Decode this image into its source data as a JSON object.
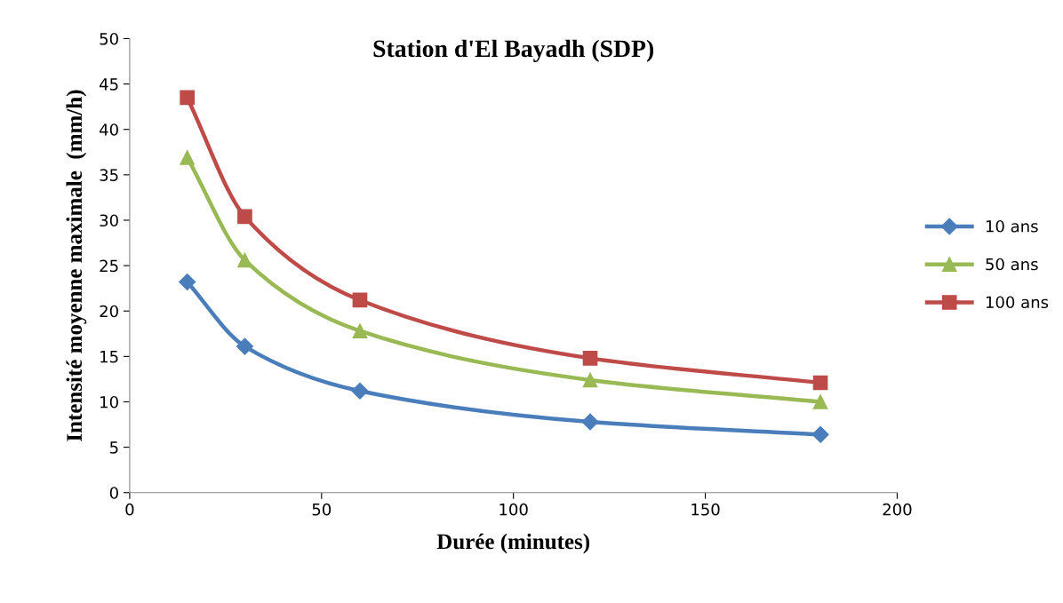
{
  "chart_data": {
    "type": "line",
    "title": "Station d'El Bayadh (SDP)",
    "xlabel": "Durée (minutes)",
    "ylabel": "Intensité moyenne maximale  (mm/h)",
    "x": [
      15,
      30,
      60,
      120,
      180
    ],
    "series": [
      {
        "name": "10 ans",
        "color": "#4a7ebb",
        "marker": "diamond",
        "values": [
          23.2,
          16.1,
          11.2,
          7.8,
          6.4
        ]
      },
      {
        "name": "50 ans",
        "color": "#98b954",
        "marker": "triangle",
        "values": [
          36.9,
          25.6,
          17.8,
          12.4,
          10.0
        ]
      },
      {
        "name": "100 ans",
        "color": "#be4b48",
        "marker": "square",
        "values": [
          43.5,
          30.4,
          21.2,
          14.8,
          12.1
        ]
      }
    ],
    "xlim": [
      0,
      200
    ],
    "xticks": [
      0,
      50,
      100,
      150,
      200
    ],
    "ylim": [
      0,
      50
    ],
    "yticks": [
      0,
      5,
      10,
      15,
      20,
      25,
      30,
      35,
      40,
      45,
      50
    ],
    "grid": false,
    "legend": "right"
  }
}
